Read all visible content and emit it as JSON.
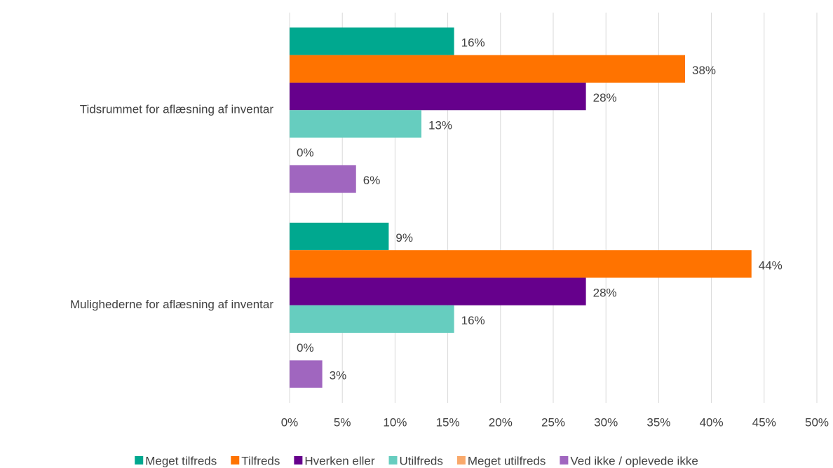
{
  "chart_data": {
    "type": "bar",
    "orientation": "horizontal",
    "categories": [
      "Tidsrummet for aflæsning af inventar",
      "Mulighederne for aflæsning af inventar"
    ],
    "series": [
      {
        "name": "Meget tilfreds",
        "color": "#00a88f",
        "values": [
          15.6,
          9.4
        ],
        "value_labels": [
          "16%",
          "9%"
        ]
      },
      {
        "name": "Tilfreds",
        "color": "#ff7300",
        "values": [
          37.5,
          43.8
        ],
        "value_labels": [
          "38%",
          "44%"
        ]
      },
      {
        "name": "Hverken eller",
        "color": "#66008c",
        "values": [
          28.1,
          28.1
        ],
        "value_labels": [
          "28%",
          "28%"
        ]
      },
      {
        "name": "Utilfreds",
        "color": "#66cdbf",
        "values": [
          12.5,
          15.6
        ],
        "value_labels": [
          "13%",
          "16%"
        ]
      },
      {
        "name": "Meget utilfreds",
        "color": "#f9a96b",
        "values": [
          0,
          0
        ],
        "value_labels": [
          "0%",
          "0%"
        ]
      },
      {
        "name": "Ved ikke / oplevede ikke",
        "color": "#a066bf",
        "values": [
          6.3,
          3.1
        ],
        "value_labels": [
          "6%",
          "3%"
        ]
      }
    ],
    "xlim": [
      0,
      50
    ],
    "xticks": [
      {
        "value": 0,
        "label": "0%"
      },
      {
        "value": 5,
        "label": "5%"
      },
      {
        "value": 10,
        "label": "10%"
      },
      {
        "value": 15,
        "label": "15%"
      },
      {
        "value": 20,
        "label": "20%"
      },
      {
        "value": 25,
        "label": "25%"
      },
      {
        "value": 30,
        "label": "30%"
      },
      {
        "value": 35,
        "label": "35%"
      },
      {
        "value": 40,
        "label": "40%"
      },
      {
        "value": 45,
        "label": "45%"
      },
      {
        "value": 50,
        "label": "50%"
      }
    ],
    "grid": true,
    "legend": "bottom"
  }
}
